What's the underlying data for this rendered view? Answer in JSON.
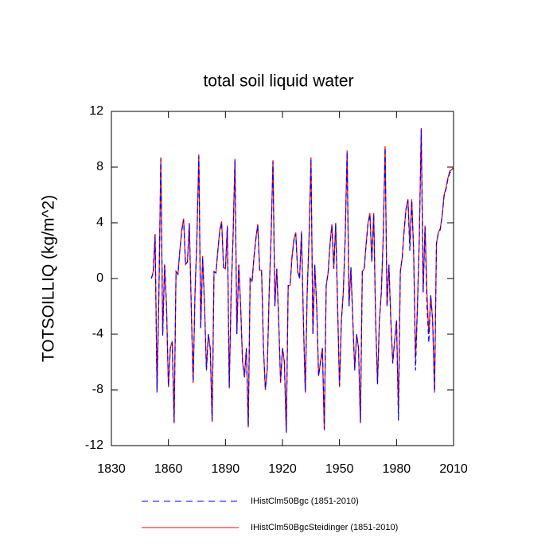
{
  "chart_data": {
    "type": "line",
    "title": "total soil liquid water",
    "y_label": "TOTSOILLIQ  (kg/m^2)",
    "xlim": [
      1830,
      2010
    ],
    "xticks": [
      1830,
      1860,
      1890,
      1920,
      1950,
      1980,
      2010
    ],
    "ylim": [
      -12,
      12
    ],
    "yticks": [
      -12,
      -8,
      -4,
      0,
      4,
      8,
      12
    ],
    "grid": false,
    "x": [
      1851,
      1852,
      1853,
      1854,
      1855,
      1856,
      1857,
      1858,
      1859,
      1860,
      1861,
      1862,
      1863,
      1864,
      1865,
      1866,
      1867,
      1868,
      1869,
      1870,
      1871,
      1872,
      1873,
      1874,
      1875,
      1876,
      1877,
      1878,
      1879,
      1880,
      1881,
      1882,
      1883,
      1884,
      1885,
      1886,
      1887,
      1888,
      1889,
      1890,
      1891,
      1892,
      1893,
      1894,
      1895,
      1896,
      1897,
      1898,
      1899,
      1900,
      1901,
      1902,
      1903,
      1904,
      1905,
      1906,
      1907,
      1908,
      1909,
      1910,
      1911,
      1912,
      1913,
      1914,
      1915,
      1916,
      1917,
      1918,
      1919,
      1920,
      1921,
      1922,
      1923,
      1924,
      1925,
      1926,
      1927,
      1928,
      1929,
      1930,
      1931,
      1932,
      1933,
      1934,
      1935,
      1936,
      1937,
      1938,
      1939,
      1940,
      1941,
      1942,
      1943,
      1944,
      1945,
      1946,
      1947,
      1948,
      1949,
      1950,
      1951,
      1952,
      1953,
      1954,
      1955,
      1956,
      1957,
      1958,
      1959,
      1960,
      1961,
      1962,
      1963,
      1964,
      1965,
      1966,
      1967,
      1968,
      1969,
      1970,
      1971,
      1972,
      1973,
      1974,
      1975,
      1976,
      1977,
      1978,
      1979,
      1980,
      1981,
      1982,
      1983,
      1984,
      1985,
      1986,
      1987,
      1988,
      1989,
      1990,
      1991,
      1992,
      1993,
      1994,
      1995,
      1996,
      1997,
      1998,
      1999,
      2000,
      2001,
      2002,
      2003,
      2004,
      2005,
      2006,
      2007,
      2008,
      2009,
      2010
    ],
    "series": [
      {
        "name": "IHistClm50BgcSteidinger (1851-2010)",
        "color": "#ff0000",
        "dash": "solid",
        "values": [
          0,
          0.5,
          3.2,
          -8.2,
          -1,
          8.7,
          -4,
          1,
          -2,
          -7.8,
          -5,
          -4.5,
          -10.4,
          0.5,
          0.3,
          2,
          3.5,
          4.3,
          1,
          1.2,
          4,
          -2,
          -7.5,
          -1,
          3,
          8.9,
          -3.5,
          1.6,
          -2,
          -6.5,
          -4,
          -5,
          -10.3,
          0.5,
          0.4,
          2,
          3.5,
          4.1,
          0.8,
          0.7,
          3.8,
          -7.9,
          -1,
          3,
          8.6,
          -4,
          1,
          -2,
          -6,
          -7,
          -5,
          -10.7,
          0,
          -0.2,
          1.5,
          2.9,
          3.9,
          0.6,
          0.6,
          -5,
          -8,
          -6.5,
          -1,
          3,
          8.5,
          -2,
          0.7,
          -3,
          -7.5,
          -5,
          -6,
          -11.1,
          -0.5,
          -0.5,
          1.5,
          2.8,
          3.3,
          0.5,
          0,
          3.4,
          -3,
          -8.2,
          -1,
          3,
          8.7,
          -4,
          1,
          -2,
          -7,
          -6,
          -5,
          -10.9,
          -0.5,
          0.4,
          2.5,
          3.9,
          0.7,
          4,
          -2,
          -7.8,
          -3,
          -1,
          3,
          9.2,
          -2,
          0.8,
          -3,
          -6.5,
          -4,
          -5,
          -10.4,
          0.5,
          0.7,
          2.5,
          4,
          4.7,
          1.2,
          4.7,
          -3,
          -7.5,
          -3,
          -1,
          3,
          9.5,
          -2,
          1,
          -3,
          -6,
          -4.5,
          -3,
          -9.5,
          0.5,
          1.5,
          3.5,
          5,
          5.7,
          2.5,
          5.7,
          2,
          -5.8,
          -2,
          3,
          10.8,
          -1,
          3.8,
          -1,
          -4,
          -1.2,
          -3,
          -8.2,
          2.5,
          3.3,
          3.6,
          4.5,
          6,
          6.5,
          7.2,
          7.7,
          7.8,
          8
        ]
      },
      {
        "name": "IHistClm50Bgc (1851-2010)",
        "color": "#0000ff",
        "dash": "dashed",
        "values": [
          0,
          0.4,
          3.1,
          -8.1,
          -1,
          8.6,
          -4.1,
          1,
          -2,
          -7.7,
          -5,
          -4.6,
          -10.3,
          0.5,
          0.3,
          2,
          3.4,
          4.2,
          1,
          1.2,
          3.9,
          -2,
          -7.4,
          -1,
          3,
          8.8,
          -3.6,
          1.5,
          -2,
          -6.6,
          -4,
          -5,
          -10.2,
          0.5,
          0.4,
          2,
          3.4,
          4,
          0.8,
          0.7,
          3.7,
          -7.8,
          -1,
          3,
          8.5,
          -4,
          1,
          -2,
          -6,
          -7.1,
          -5,
          -10.6,
          0,
          -0.2,
          1.5,
          2.8,
          3.8,
          0.6,
          0.6,
          -5,
          -7.9,
          -6.5,
          -1,
          3,
          8.4,
          -2,
          0.7,
          -3,
          -7.4,
          -5,
          -6,
          -11,
          -0.5,
          -0.5,
          1.5,
          2.7,
          3.2,
          0.5,
          0,
          3.3,
          -3,
          -8.1,
          -1,
          3,
          8.6,
          -4,
          1,
          -2,
          -7,
          -6,
          -5,
          -10.8,
          -0.5,
          0.4,
          2.4,
          3.8,
          0.7,
          3.9,
          -2,
          -7.7,
          -3,
          -1,
          3,
          9.1,
          -2,
          0.8,
          -3,
          -6.6,
          -4,
          -5,
          -10.3,
          0.5,
          0.7,
          2.4,
          3.9,
          4.6,
          1.2,
          4.6,
          -3,
          -7.6,
          -3,
          -1,
          3,
          9.4,
          -2,
          1,
          -3,
          -6.1,
          -4.5,
          -3,
          -10.2,
          0.5,
          1.5,
          3.4,
          5,
          5.6,
          2,
          5.6,
          2,
          -6.6,
          -2,
          3,
          10.7,
          -1,
          3.7,
          -2,
          -4.6,
          -1.2,
          -3,
          -8.1,
          2.5,
          3.3,
          3.5,
          4.5,
          5.9,
          6.4,
          7.1,
          7.6,
          7.7,
          7.9
        ]
      }
    ]
  }
}
